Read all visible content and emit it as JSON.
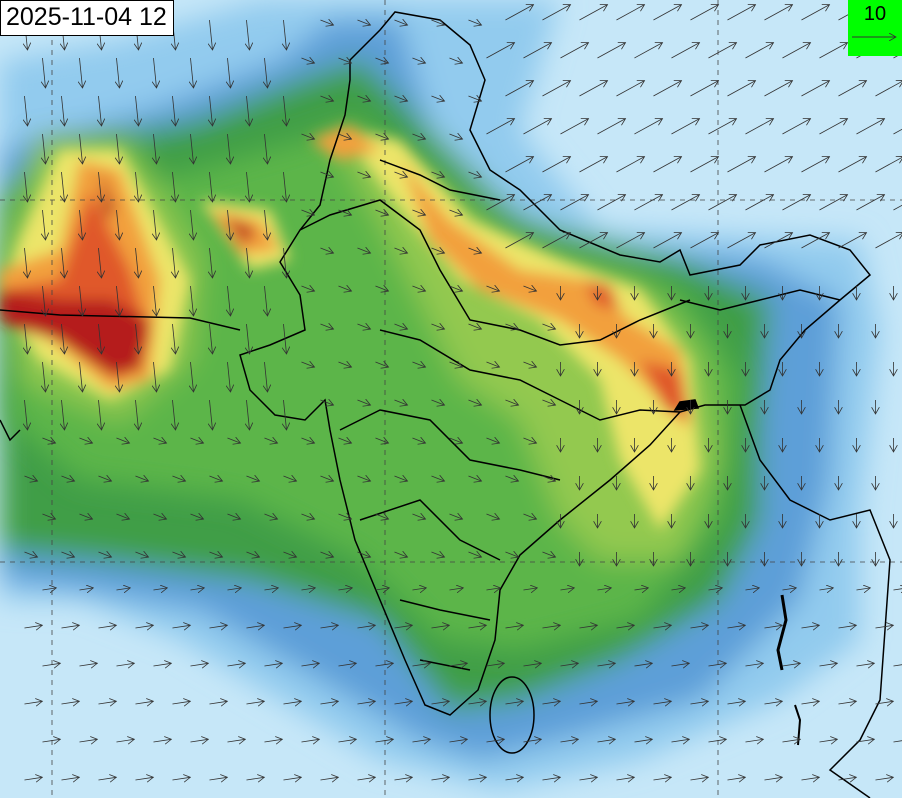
{
  "timestamp": "2025-11-04 12",
  "wind_reference": {
    "value": "10",
    "icon": "arrow-right-icon",
    "background": "#00ff00"
  },
  "colors": {
    "ocean": "#c6e7f8",
    "light_blue": "#92cbee",
    "blue": "#5d9fd8",
    "dark_green": "#3f9e46",
    "green": "#5bb54a",
    "light_green": "#93c94f",
    "yellow": "#ece569",
    "orange": "#f2a03c",
    "red_orange": "#e0582a",
    "dark_red": "#b51a1a",
    "border": "#000000"
  }
}
